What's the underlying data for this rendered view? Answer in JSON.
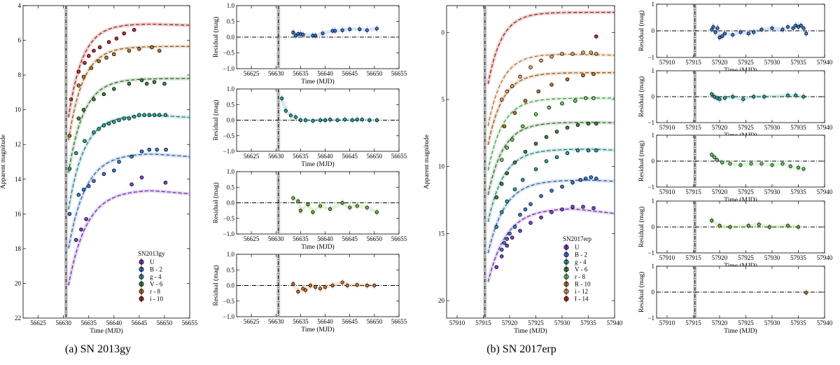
{
  "captions": {
    "left": "(a) SN 2013gy",
    "right": "(b) SN 2017erp"
  },
  "chart_data": [
    {
      "id": "sn2013gy-lc",
      "type": "line",
      "legend_title": "SN2013gy",
      "legend_placement": "bottom-right",
      "xlabel": "Time (MJD)",
      "ylabel": "Apparent magnitude",
      "xlim": [
        56622,
        56655
      ],
      "ylim": [
        22,
        4
      ],
      "y_inverted": true,
      "xticks": [
        56625,
        56630,
        56635,
        56640,
        56645,
        56650,
        56655
      ],
      "yticks": [
        4,
        6,
        8,
        10,
        12,
        14,
        16,
        18,
        20,
        22
      ],
      "explosion_epoch": 56630.5,
      "series": [
        {
          "name": "U",
          "color": "#8a3ad9",
          "fit": {
            "t0": 56630.7,
            "rise": 3.6,
            "mpeak": 14.6,
            "tpeak": 56647,
            "decl": 0.03
          },
          "x": [
            56632.5,
            56633.5,
            56634.5,
            56643.5,
            56645.5,
            56650.2
          ],
          "y": [
            17.5,
            16.9,
            16.3,
            14.3,
            13.9,
            14.2
          ]
        },
        {
          "name": "B - 2",
          "color": "#3a7ad9",
          "fit": {
            "t0": 56630.7,
            "rise": 3.4,
            "mpeak": 12.5,
            "tpeak": 56647,
            "decl": 0.025
          },
          "x": [
            56631.2,
            56633.0,
            56634.0,
            56635.0,
            56636.0,
            56638.0,
            56640.0,
            56641.0,
            56643.5,
            56645.5,
            56647.0,
            56648.5,
            56650.3
          ],
          "y": [
            16.0,
            14.9,
            14.6,
            14.4,
            14.1,
            13.7,
            13.5,
            13.0,
            12.7,
            12.4,
            12.3,
            12.3,
            12.3
          ]
        },
        {
          "name": "g - 4",
          "color": "#2aa6a0",
          "fit": {
            "t0": 56630.7,
            "rise": 3.1,
            "mpeak": 10.3,
            "tpeak": 56648,
            "decl": 0.02
          },
          "x": [
            56631.2,
            56632.5,
            56634.2,
            56636.0,
            56637.0,
            56638.0,
            56639.0,
            56640.0,
            56641.0,
            56642.0,
            56643.0,
            56644.0,
            56645.0,
            56646.0,
            56647.0,
            56648.0,
            56649.0,
            56650.2
          ],
          "y": [
            13.4,
            12.5,
            11.8,
            11.3,
            11.1,
            10.9,
            10.8,
            10.7,
            10.6,
            10.5,
            10.5,
            10.4,
            10.3,
            10.3,
            10.3,
            10.3,
            10.3,
            10.3
          ]
        },
        {
          "name": "V - 6",
          "color": "#3f8a3a",
          "fit": {
            "t0": 56630.7,
            "rise": 3.0,
            "mpeak": 8.2,
            "tpeak": 56650,
            "decl": 0.0
          },
          "x": [
            56631.2,
            56633.0,
            56634.0,
            56636.0,
            56638.0,
            56640.0,
            56643.0,
            56645.5,
            56646.5,
            56648.0,
            56650.0
          ],
          "y": [
            11.5,
            10.5,
            10.0,
            9.4,
            9.1,
            8.8,
            8.5,
            8.3,
            8.5,
            8.4,
            8.5
          ]
        },
        {
          "name": "r - 8",
          "color": "#c0762a",
          "fit": {
            "t0": 56630.7,
            "rise": 2.9,
            "mpeak": 6.35,
            "tpeak": 56652,
            "decl": 0.0
          },
          "x": [
            56631.5,
            56633.0,
            56634.0,
            56635.5,
            56637.0,
            56638.5,
            56640.0,
            56643.0,
            56645.0,
            56647.5,
            56649.0
          ],
          "y": [
            9.4,
            8.6,
            8.1,
            7.6,
            7.2,
            7.0,
            6.8,
            6.6,
            6.5,
            6.4,
            6.6
          ]
        },
        {
          "name": "i - 10",
          "color": "#c22a2a",
          "fit": {
            "t0": 56630.7,
            "rise": 2.8,
            "mpeak": 5.05,
            "tpeak": 56647,
            "decl": 0.01
          },
          "x": [
            56633.0,
            56634.2,
            56635.0,
            56636.0,
            56637.2,
            56639.0,
            56640.5,
            56642.0,
            56644.0
          ],
          "y": [
            7.8,
            7.3,
            6.9,
            6.6,
            6.4,
            6.1,
            5.9,
            5.6,
            5.4
          ]
        }
      ]
    },
    {
      "id": "sn2013gy-res",
      "type": "scatter",
      "xlabel": "Time (MJD)",
      "ylabel": "Residual (mag)",
      "xlim": [
        56622,
        56655
      ],
      "ylim": [
        -1.0,
        1.0
      ],
      "xticks": [
        56625,
        56630,
        56635,
        56640,
        56645,
        56650,
        56655
      ],
      "yticks": [
        -1.0,
        -0.5,
        0.0,
        0.5,
        1.0
      ],
      "explosion_epoch": 56630.5,
      "panels": [
        {
          "color": "#3a7ad9",
          "x": [
            56633.5,
            56634.0,
            56634.5,
            56635.0,
            56635.5,
            56637.5,
            56638.0,
            56639.5,
            56641.5,
            56642.0,
            56643.5,
            56645.0,
            56647.0,
            56648.5,
            56650.5
          ],
          "y": [
            0.15,
            0.05,
            0.1,
            0.1,
            0.08,
            0.05,
            0.05,
            0.12,
            0.2,
            0.2,
            0.22,
            0.25,
            0.25,
            0.22,
            0.27
          ]
        },
        {
          "color": "#2aa6a0",
          "x": [
            56631.2,
            56632.0,
            56633.0,
            56634.0,
            56635.0,
            56636.0,
            56637.5,
            56639.0,
            56640.0,
            56641.0,
            56642.5,
            56644.0,
            56645.5,
            56646.5,
            56647.5,
            56649.0,
            56650.5
          ],
          "y": [
            0.7,
            0.3,
            0.15,
            0.1,
            0.0,
            0.0,
            -0.02,
            0.0,
            0.0,
            0.02,
            0.0,
            0.02,
            0.0,
            0.02,
            0.02,
            0.0,
            0.0
          ]
        },
        {
          "color": "#7ab83a",
          "x": [
            56633.5,
            56634.5,
            56635.0,
            56636.5,
            56637.5,
            56639.0,
            56641.0,
            56643.5,
            56645.0,
            56646.5,
            56648.5,
            56650.5
          ],
          "y": [
            0.15,
            0.05,
            -0.25,
            -0.05,
            -0.3,
            -0.1,
            -0.2,
            0.0,
            -0.15,
            -0.1,
            -0.15,
            -0.3
          ]
        },
        {
          "color": "#d07a30",
          "x": [
            56633.5,
            56634.5,
            56635.5,
            56636.0,
            56637.0,
            56638.0,
            56639.0,
            56640.0,
            56641.5,
            56643.5,
            56644.5,
            56646.5,
            56648.5,
            56650.0
          ],
          "y": [
            0.05,
            -0.2,
            -0.1,
            -0.15,
            0.0,
            -0.05,
            -0.1,
            -0.05,
            0.0,
            0.1,
            0.0,
            0.02,
            0.0,
            0.0
          ]
        }
      ]
    },
    {
      "id": "sn2017erp-lc",
      "type": "line",
      "legend_title": "SN2017erp",
      "legend_placement": "bottom-right",
      "xlabel": "Time (MJD)",
      "ylabel": "Apparent magnitude",
      "xlim": [
        57908,
        57940
      ],
      "ylim": [
        21.3,
        -2
      ],
      "y_inverted": true,
      "xticks": [
        57910,
        57915,
        57920,
        57925,
        57930,
        57935,
        57940
      ],
      "yticks": [
        0,
        5,
        10,
        15,
        20
      ],
      "explosion_epoch": 57915.3,
      "series": [
        {
          "name": "U",
          "color": "#8a3ad9",
          "fit": {
            "t0": 57915.6,
            "rise": 3.5,
            "mpeak": 13.1,
            "tpeak": 57932,
            "decl": 0.05
          },
          "x": [
            57917.5,
            57918.5,
            57919.5,
            57920.5,
            57922.0,
            57924.0,
            57926.0,
            57928.0,
            57930.0,
            57932.0,
            57934.0,
            57936.0
          ],
          "y": [
            17.5,
            16.7,
            15.9,
            15.3,
            14.8,
            14.2,
            13.8,
            13.4,
            13.2,
            13.0,
            13.0,
            13.1
          ]
        },
        {
          "name": "B - 2",
          "color": "#3a7ad9",
          "fit": {
            "t0": 57915.6,
            "rise": 3.2,
            "mpeak": 11.0,
            "tpeak": 57935,
            "decl": 0.02
          },
          "x": [
            57918.5,
            57919.0,
            57919.5,
            57920.0,
            57921.0,
            57922.0,
            57923.0,
            57924.0,
            57926.0,
            57928.0,
            57930.0,
            57932.0,
            57933.5,
            57934.5,
            57935.5,
            57936.5
          ],
          "y": [
            16.2,
            15.7,
            15.4,
            15.0,
            14.5,
            13.6,
            13.2,
            12.8,
            12.2,
            11.8,
            11.5,
            11.2,
            11.0,
            10.9,
            10.8,
            10.9
          ]
        },
        {
          "name": "g - 4",
          "color": "#2aa6a0",
          "fit": {
            "t0": 57915.6,
            "rise": 3.0,
            "mpeak": 8.7,
            "tpeak": 57936,
            "decl": 0.02
          },
          "x": [
            57917.5,
            57918.5,
            57919.5,
            57921.0,
            57922.5,
            57925.0,
            57927.0,
            57929.0,
            57931.0,
            57933.0,
            57935.0,
            57936.5
          ],
          "y": [
            14.5,
            13.4,
            12.6,
            11.7,
            11.0,
            10.2,
            9.6,
            9.3,
            9.0,
            8.8,
            8.8,
            8.8
          ]
        },
        {
          "name": "V - 6",
          "color": "#3f8a3a",
          "fit": {
            "t0": 57915.6,
            "rise": 2.9,
            "mpeak": 6.7,
            "tpeak": 57936,
            "decl": 0.01
          },
          "x": [
            57917.5,
            57918.5,
            57919.5,
            57921.0,
            57923.0,
            57925.0,
            57927.0,
            57929.0,
            57931.0,
            57933.0,
            57935.0,
            57936.5
          ],
          "y": [
            12.3,
            11.3,
            10.5,
            9.7,
            8.9,
            8.3,
            7.8,
            7.4,
            7.1,
            6.9,
            6.8,
            6.8
          ]
        },
        {
          "name": "r - 8",
          "color": "#6ccf6a",
          "fit": {
            "t0": 57915.6,
            "rise": 2.8,
            "mpeak": 4.9,
            "tpeak": 57937,
            "decl": 0.0
          },
          "x": [
            57918.5,
            57919.5,
            57920.5,
            57922.5,
            57925.0,
            57927.5,
            57930.0,
            57932.5,
            57934.5,
            57936.0
          ],
          "y": [
            9.5,
            8.6,
            8.0,
            7.0,
            6.1,
            5.6,
            5.3,
            5.1,
            4.9,
            4.9
          ]
        },
        {
          "name": "R - 10",
          "color": "#c0762a",
          "fit": {
            "t0": 57915.6,
            "rise": 2.8,
            "mpeak": 3.0,
            "tpeak": 57938,
            "decl": 0.0
          },
          "x": [
            57919.0,
            57921.0,
            57923.0,
            57925.5,
            57928.0,
            57931.0,
            57934.0,
            57936.0
          ],
          "y": [
            7.0,
            6.0,
            5.1,
            4.4,
            3.9,
            3.5,
            3.2,
            3.1
          ]
        },
        {
          "name": "i - 12",
          "color": "#e8a060",
          "fit": {
            "t0": 57915.6,
            "rise": 2.7,
            "mpeak": 1.6,
            "tpeak": 57930,
            "decl": 0.01
          },
          "x": [
            57918.5,
            57919.5,
            57920.5,
            57922.0,
            57924.0,
            57926.0,
            57928.0,
            57930.0,
            57932.0,
            57934.0,
            57935.5,
            57936.5
          ],
          "y": [
            5.0,
            4.4,
            4.0,
            3.3,
            2.6,
            2.1,
            1.8,
            1.6,
            1.6,
            1.5,
            1.5,
            1.6
          ]
        },
        {
          "name": "I - 14",
          "color": "#c22a2a",
          "fit": {
            "t0": 57915.6,
            "rise": 2.6,
            "mpeak": -1.5,
            "tpeak": 57945,
            "decl": 0.0
          },
          "x": [
            57936.5
          ],
          "y": [
            0.3
          ]
        }
      ]
    },
    {
      "id": "sn2017erp-res",
      "type": "scatter",
      "xlabel": "Time (MJD)",
      "ylabel": "Residual (mag)",
      "xlim": [
        57908,
        57940
      ],
      "ylim": [
        -1,
        1
      ],
      "xticks": [
        57910,
        57915,
        57920,
        57925,
        57930,
        57935,
        57940
      ],
      "yticks": [
        -1,
        0,
        1
      ],
      "explosion_epoch": 57915.3,
      "panels": [
        {
          "color": "#3a7ad9",
          "x": [
            57918.5,
            57918.8,
            57919.2,
            57919.6,
            57920.0,
            57920.5,
            57921.0,
            57922.5,
            57924.0,
            57925.5,
            57926.5,
            57928.0,
            57930.0,
            57932.0,
            57933.0,
            57934.0,
            57934.5,
            57935.0,
            57935.5,
            57936.0,
            57936.5
          ],
          "y": [
            0.05,
            0.15,
            -0.05,
            0.1,
            -0.25,
            -0.2,
            -0.1,
            -0.15,
            -0.05,
            -0.1,
            -0.05,
            0.05,
            0.1,
            0.05,
            0.15,
            0.1,
            0.2,
            0.15,
            0.2,
            0.1,
            -0.1
          ]
        },
        {
          "color": "#2aa6a0",
          "x": [
            57918.5,
            57919.0,
            57919.5,
            57920.0,
            57921.0,
            57922.5,
            57924.5,
            57926.5,
            57928.5,
            57933.0,
            57934.5,
            57936.0
          ],
          "y": [
            0.1,
            0.0,
            -0.05,
            -0.1,
            -0.05,
            0.0,
            -0.1,
            0.0,
            0.0,
            0.05,
            0.05,
            0.0
          ]
        },
        {
          "color": "#6ccf6a",
          "x": [
            57918.5,
            57919.0,
            57919.5,
            57920.5,
            57922.0,
            57924.0,
            57926.0,
            57928.0,
            57930.0,
            57932.0,
            57933.5,
            57935.0,
            57936.0
          ],
          "y": [
            0.25,
            0.15,
            0.05,
            -0.05,
            -0.1,
            -0.15,
            -0.1,
            -0.1,
            -0.15,
            -0.1,
            -0.2,
            -0.25,
            -0.3
          ]
        },
        {
          "color": "#7ab83a",
          "x": [
            57918.5,
            57920.0,
            57922.0,
            57925.5,
            57927.5,
            57929.5,
            57933.0,
            57935.0
          ],
          "y": [
            0.25,
            0.05,
            0.0,
            0.05,
            0.1,
            0.0,
            0.05,
            0.0
          ]
        },
        {
          "color": "#c0762a",
          "x": [
            57936.5
          ],
          "y": [
            -0.02
          ]
        }
      ]
    }
  ]
}
